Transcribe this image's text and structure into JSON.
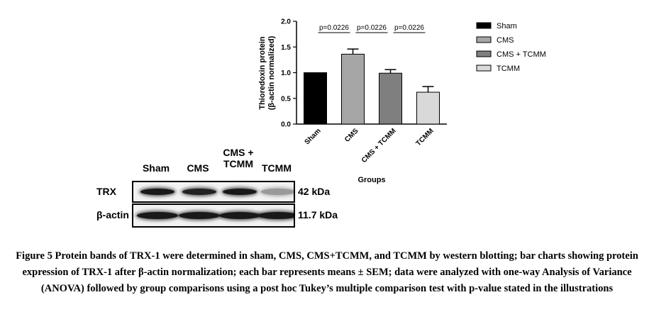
{
  "chart_data": {
    "type": "bar",
    "categories": [
      "Sham",
      "CMS",
      "CMS + TCMM",
      "TCMM"
    ],
    "values": [
      1.0,
      1.36,
      0.99,
      0.62
    ],
    "errors": [
      0.0,
      0.1,
      0.07,
      0.11
    ],
    "colors": [
      "#000000",
      "#a6a6a6",
      "#7f7f7f",
      "#d9d9d9"
    ],
    "ylabel_line1": "Thioredoxin protein",
    "ylabel_line2": "(β-actin normalized)",
    "xlabel": "Groups",
    "ylim": [
      0,
      2.0
    ],
    "yticks": [
      "0.0",
      "0.5",
      "1.0",
      "1.5",
      "2.0"
    ],
    "ytick_values": [
      0,
      0.5,
      1.0,
      1.5,
      2.0
    ],
    "legend": [
      "Sham",
      "CMS",
      "CMS + TCMM",
      "TCMM"
    ],
    "legend_placement": "right",
    "grid": false,
    "annotations": [
      {
        "from": 0,
        "to": 1,
        "text": "p=0.0226"
      },
      {
        "from": 1,
        "to": 2,
        "text": "p=0.0226"
      },
      {
        "from": 2,
        "to": 3,
        "text": "p=0.0226"
      }
    ]
  },
  "blot": {
    "lanes": [
      "Sham",
      "CMS",
      "CMS +\nTCMM",
      "TCMM"
    ],
    "rows": [
      {
        "label": "TRX",
        "kda": "42 kDa",
        "intensity": [
          1.0,
          0.95,
          1.0,
          0.25
        ]
      },
      {
        "label": "β-actin",
        "kda": "11.7 kDa",
        "intensity": [
          1.0,
          1.0,
          1.0,
          1.0
        ]
      }
    ]
  },
  "caption": "Figure 5 Protein bands of TRX-1 were determined in sham, CMS, CMS+TCMM, and TCMM by western blotting; bar charts showing protein expression of TRX-1 after β-actin normalization; each bar represents means ± SEM; data were analyzed with one-way Analysis of Variance (ANOVA) followed by group comparisons using a post hoc Tukey’s multiple comparison test with p-value stated in the illustrations"
}
